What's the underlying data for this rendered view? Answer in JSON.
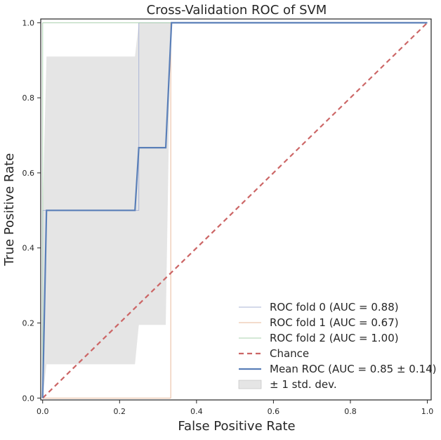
{
  "chart_data": {
    "type": "line",
    "title": "Cross-Validation ROC of SVM",
    "xlabel": "False Positive Rate",
    "ylabel": "True Positive Rate",
    "xlim": [
      -0.005,
      1.01
    ],
    "ylim": [
      -0.005,
      1.01
    ],
    "xticks": [
      "0.0",
      "0.2",
      "0.4",
      "0.6",
      "0.8",
      "1.0"
    ],
    "yticks": [
      "0.0",
      "0.2",
      "0.4",
      "0.6",
      "0.8",
      "1.0"
    ],
    "legend_position": "lower-right",
    "grid": false,
    "series": [
      {
        "name": "ROC fold 0 (AUC = 0.88)",
        "color": "#aab4d6",
        "x": [
          0.0,
          0.0,
          0.25,
          0.25,
          1.0
        ],
        "y": [
          0.0,
          0.5,
          0.5,
          1.0,
          1.0
        ]
      },
      {
        "name": "ROC fold 1 (AUC = 0.67)",
        "color": "#e8b89a",
        "x": [
          0.0,
          0.333,
          0.333,
          1.0
        ],
        "y": [
          0.0,
          0.0,
          1.0,
          1.0
        ]
      },
      {
        "name": "ROC fold 2 (AUC = 1.00)",
        "color": "#a9d1ae",
        "x": [
          0.0,
          0.0,
          1.0
        ],
        "y": [
          0.0,
          1.0,
          1.0
        ]
      },
      {
        "name": "Chance",
        "color": "#cc6666",
        "x": [
          0.0,
          1.0
        ],
        "y": [
          0.0,
          1.0
        ]
      },
      {
        "name": "Mean ROC (AUC = 0.85 ± 0.14)",
        "color": "#5a7fb8",
        "x": [
          0.0,
          0.01,
          0.01,
          0.24,
          0.25,
          0.255,
          0.32,
          0.335,
          1.0
        ],
        "y": [
          0.0,
          0.5,
          0.5,
          0.5,
          0.667,
          0.667,
          0.667,
          1.0,
          1.0
        ]
      }
    ],
    "std_band": {
      "name": "± 1 std. dev.",
      "color": "#d3d3d3",
      "x": [
        0.0,
        0.01,
        0.24,
        0.25,
        0.255,
        0.32,
        0.333,
        1.0
      ],
      "upper": [
        0.5,
        0.91,
        0.91,
        1.0,
        1.0,
        1.0,
        1.0,
        1.0
      ],
      "lower": [
        0.0,
        0.09,
        0.09,
        0.195,
        0.195,
        0.195,
        1.0,
        1.0
      ]
    }
  }
}
